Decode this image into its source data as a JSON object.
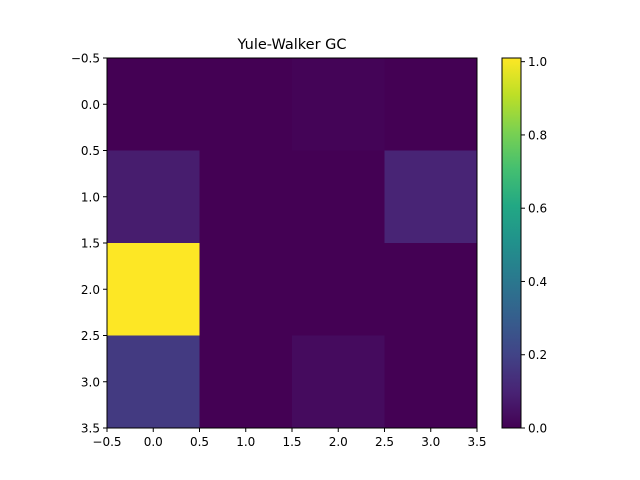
{
  "chart_data": {
    "type": "heatmap",
    "title": "Yule-Walker GC",
    "xlabel": "",
    "ylabel": "",
    "x_extent": [
      -0.5,
      3.5
    ],
    "y_extent": [
      -0.5,
      3.5
    ],
    "y_inverted": true,
    "x_tick_values": [
      -0.5,
      0.0,
      0.5,
      1.0,
      1.5,
      2.0,
      2.5,
      3.0,
      3.5
    ],
    "x_tick_labels": [
      "−0.5",
      "0.0",
      "0.5",
      "1.0",
      "1.5",
      "2.0",
      "2.5",
      "3.0",
      "3.5"
    ],
    "y_tick_values": [
      -0.5,
      0.0,
      0.5,
      1.0,
      1.5,
      2.0,
      2.5,
      3.0,
      3.5
    ],
    "y_tick_labels": [
      "−0.5",
      "0.0",
      "0.5",
      "1.0",
      "1.5",
      "2.0",
      "2.5",
      "3.0",
      "3.5"
    ],
    "matrix": [
      [
        0.0,
        0.0,
        0.01,
        0.0
      ],
      [
        0.08,
        0.0,
        0.0,
        0.1
      ],
      [
        1.01,
        0.0,
        0.0,
        0.0
      ],
      [
        0.17,
        0.0,
        0.03,
        0.0
      ]
    ],
    "colormap": "viridis",
    "colorbar": {
      "range": [
        0.0,
        1.01
      ],
      "tick_values": [
        0.0,
        0.2,
        0.4,
        0.6,
        0.8,
        1.0
      ],
      "tick_labels": [
        "0.0",
        "0.2",
        "0.4",
        "0.6",
        "0.8",
        "1.0"
      ]
    },
    "grid": false,
    "legend": "none"
  }
}
